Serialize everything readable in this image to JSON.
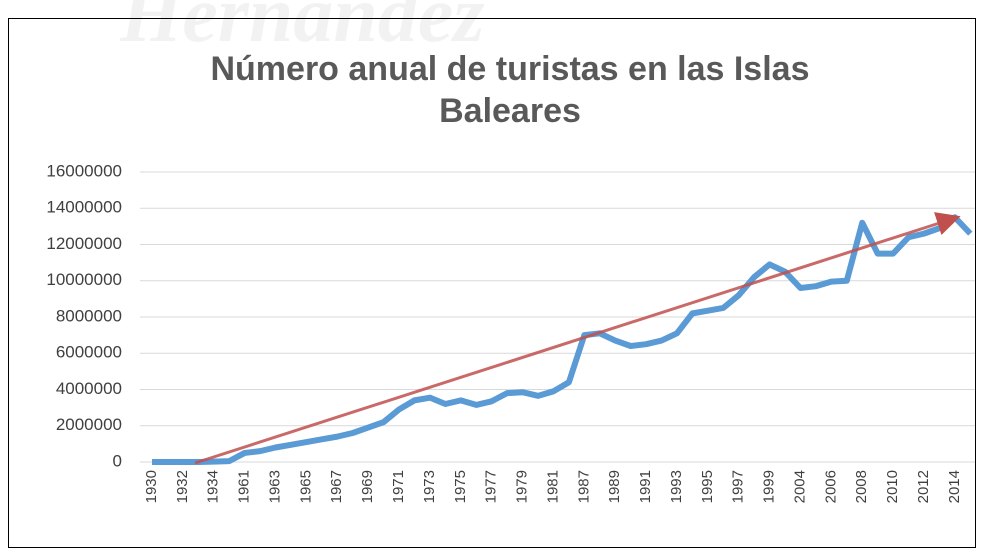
{
  "chart_data": {
    "type": "line",
    "title": "Número anual de turistas en las Islas Baleares",
    "watermark": "Hernández",
    "categories": [
      "1930",
      null,
      "1932",
      null,
      "1934",
      null,
      "1961",
      null,
      "1963",
      null,
      "1965",
      null,
      "1967",
      null,
      "1969",
      null,
      "1971",
      null,
      "1973",
      null,
      "1975",
      null,
      "1977",
      null,
      "1979",
      null,
      "1981",
      null,
      "1987",
      null,
      "1989",
      null,
      "1991",
      null,
      "1993",
      null,
      "1995",
      null,
      "1997",
      null,
      "1999",
      null,
      "2004",
      null,
      "2006",
      null,
      "2008",
      null,
      "2010",
      null,
      "2012",
      null,
      "2014",
      null
    ],
    "series": [
      {
        "color": "#5b9bd5",
        "values": [
          0,
          0,
          0,
          0,
          20000,
          50000,
          500000,
          600000,
          800000,
          950000,
          1100000,
          1250000,
          1400000,
          1600000,
          1900000,
          2200000,
          2900000,
          3400000,
          3550000,
          3200000,
          3400000,
          3150000,
          3350000,
          3800000,
          3850000,
          3650000,
          3900000,
          4400000,
          7000000,
          7100000,
          6700000,
          6400000,
          6500000,
          6700000,
          7100000,
          8200000,
          8350000,
          8500000,
          9200000,
          10200000,
          10900000,
          10500000,
          9600000,
          9700000,
          9950000,
          10000000,
          13200000,
          11500000,
          11500000,
          12400000,
          12600000,
          12900000,
          13500000,
          12600000
        ]
      }
    ],
    "ylim": [
      0,
      16000000
    ],
    "yticks": [
      0,
      2000000,
      4000000,
      6000000,
      8000000,
      10000000,
      12000000,
      14000000,
      16000000
    ],
    "grid": true
  }
}
